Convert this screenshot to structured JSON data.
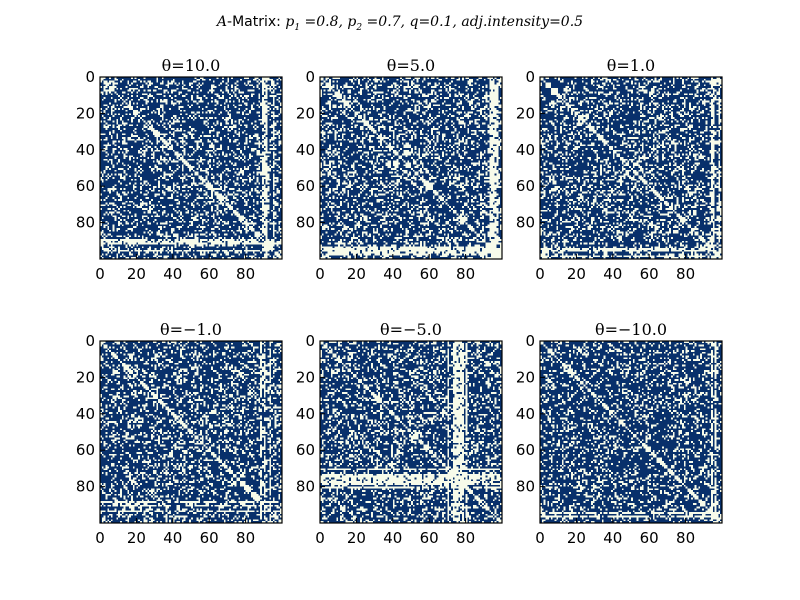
{
  "chart_data": {
    "type": "heatmap",
    "title": "A-Matrix: p1 =0.8, p2 =0.7, q=0.1, adj.intensity=0.5",
    "title_parts": {
      "matrix_symbol": "A",
      "matrix_label": "-Matrix: ",
      "params": [
        {
          "sym": "p",
          "sub": "1",
          "eq": "=0.8"
        },
        {
          "sym": "p",
          "sub": "2",
          "eq": "=0.7"
        },
        {
          "sym": "q",
          "sub": "",
          "eq": "=0.1"
        },
        {
          "sym": "adj.intensity",
          "sub": "",
          "eq": "=0.5"
        }
      ]
    },
    "matrix_size": 100,
    "xlim": [
      0,
      100
    ],
    "ylim": [
      100,
      0
    ],
    "x_ticks": [
      0,
      20,
      40,
      60,
      80
    ],
    "y_ticks": [
      0,
      20,
      40,
      60,
      80
    ],
    "colors": {
      "filled": "#08306b",
      "empty": "#f7fbea",
      "axis": "#000000"
    },
    "panels": [
      {
        "title": "θ=10.0",
        "theta": 10.0,
        "density": 0.74,
        "empty_bands": [
          90,
          91,
          95,
          89
        ]
      },
      {
        "title": "θ=5.0",
        "theta": 5.0,
        "density": 0.7,
        "empty_bands": [
          93,
          94,
          95,
          96,
          97
        ]
      },
      {
        "title": "θ=1.0",
        "theta": 1.0,
        "density": 0.72,
        "empty_bands": [
          94,
          95,
          98
        ]
      },
      {
        "title": "θ=−1.0",
        "theta": -1.0,
        "density": 0.73,
        "empty_bands": [
          88,
          90,
          93
        ]
      },
      {
        "title": "θ=−5.0",
        "theta": -5.0,
        "density": 0.72,
        "empty_bands": [
          70,
          73,
          74,
          75,
          76,
          77,
          78,
          80
        ]
      },
      {
        "title": "θ=−10.0",
        "theta": -10.0,
        "density": 0.76,
        "empty_bands": [
          94,
          96
        ]
      }
    ]
  }
}
